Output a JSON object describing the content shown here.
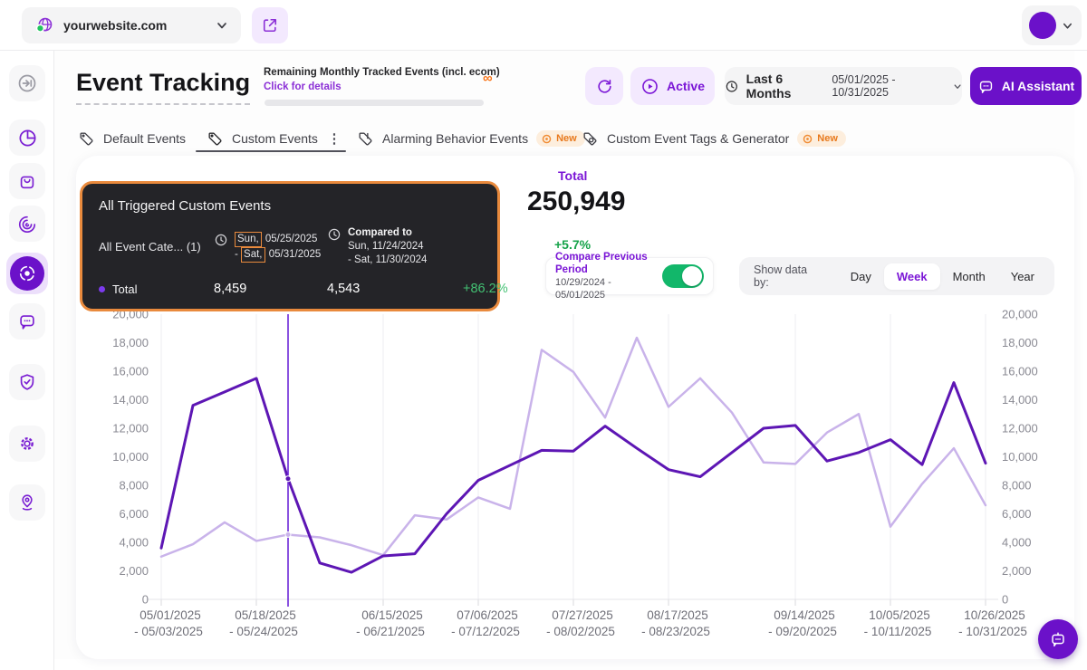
{
  "topbar": {
    "site": "yourwebsite.com"
  },
  "sidebar": {
    "items": [
      "collapse",
      "analytics-pie",
      "shop-bag",
      "recordings-spiral",
      "event-tracking-target",
      "feedback-chat",
      "privacy-shield",
      "settings-gear",
      "location-pin"
    ]
  },
  "header": {
    "title": "Event Tracking",
    "remaining_label": "Remaining Monthly Tracked Events (incl. ecom)",
    "infinity": "∞",
    "details_link": "Click for details",
    "active_label": "Active",
    "range_label": "Last 6 Months",
    "range_value": "05/01/2025 - 10/31/2025",
    "ai_label": "AI Assistant"
  },
  "tabs": [
    {
      "label": "Default Events"
    },
    {
      "label": "Custom Events",
      "active": true
    },
    {
      "label": "Alarming Behavior Events",
      "badge": "New"
    },
    {
      "label": "Custom Event Tags & Generator",
      "badge": "New"
    }
  ],
  "icons": {
    "kebab": "⋮"
  },
  "tooltip": {
    "title": "All Triggered Custom Events",
    "category": "All Event Cate...",
    "category_count": "(1)",
    "period": {
      "day1": "Sun,",
      "date1": "05/25/2025",
      "dash": "-",
      "day2": "Sat,",
      "date2": "05/31/2025"
    },
    "compare": {
      "label": "Compared to",
      "line1": "Sun, 11/24/2024",
      "line2": "- Sat, 11/30/2024"
    },
    "series": "Total",
    "value_current": "8,459",
    "value_previous": "4,543",
    "pct": "+86.2%"
  },
  "summary": {
    "label": "Total",
    "value": "250,949",
    "pct": "+5.7%"
  },
  "controls": {
    "compare_label": "Compare Previous Period",
    "compare_range": "10/29/2024 - 05/01/2025",
    "show_label": "Show data by:",
    "options": [
      "Day",
      "Week",
      "Month",
      "Year"
    ],
    "selected": "Week"
  },
  "colors": {
    "accent": "#6b11c9",
    "accent_text": "#7a15d6",
    "lavender": "#f3e9fe",
    "green": "#16a34a",
    "tooltip_green": "#43c173",
    "toggle_green": "#12b76a",
    "orange": "#e98a3d",
    "badge_orange": "#e8791d",
    "line_current": "#5d16b4",
    "line_previous": "#c9b3ea"
  },
  "chart_data": {
    "type": "line",
    "title": "All Triggered Custom Events",
    "xlabel": "",
    "ylabel": "",
    "ylim": [
      0,
      20000
    ],
    "y_tick_step": 2000,
    "grid": "vertical",
    "legend": "none",
    "hover_index": 4,
    "x_tick_weeks": [
      0,
      3,
      7,
      10,
      13,
      16,
      20,
      23,
      26
    ],
    "x_tick_labels": [
      {
        "l1": "05/01/2025",
        "l2": "- 05/03/2025"
      },
      {
        "l1": "05/18/2025",
        "l2": "- 05/24/2025"
      },
      {
        "l1": "06/15/2025",
        "l2": "- 06/21/2025"
      },
      {
        "l1": "07/06/2025",
        "l2": "- 07/12/2025"
      },
      {
        "l1": "07/27/2025",
        "l2": "- 08/02/2025"
      },
      {
        "l1": "08/17/2025",
        "l2": "- 08/23/2025"
      },
      {
        "l1": "09/14/2025",
        "l2": "- 09/20/2025"
      },
      {
        "l1": "10/05/2025",
        "l2": "- 10/11/2025"
      },
      {
        "l1": "10/26/2025",
        "l2": "- 10/31/2025"
      }
    ],
    "series": [
      {
        "name": "Total (current period)",
        "color": "#5d16b4",
        "width": 3,
        "values": [
          3600,
          13600,
          14550,
          15500,
          8459,
          2550,
          1900,
          3050,
          3200,
          6000,
          8350,
          9400,
          10450,
          10400,
          12150,
          10600,
          9100,
          8600,
          10300,
          12000,
          12200,
          9700,
          10300,
          11200,
          9450,
          15200,
          9550
        ]
      },
      {
        "name": "Total (previous period)",
        "color": "#c9b3ea",
        "width": 2.5,
        "values": [
          3000,
          3870,
          5400,
          4100,
          4543,
          4350,
          3800,
          3100,
          5900,
          5600,
          7150,
          6350,
          17500,
          15950,
          12750,
          18350,
          13500,
          15500,
          13100,
          9600,
          9500,
          11700,
          13000,
          5100,
          8100,
          10600,
          6600
        ]
      }
    ]
  }
}
